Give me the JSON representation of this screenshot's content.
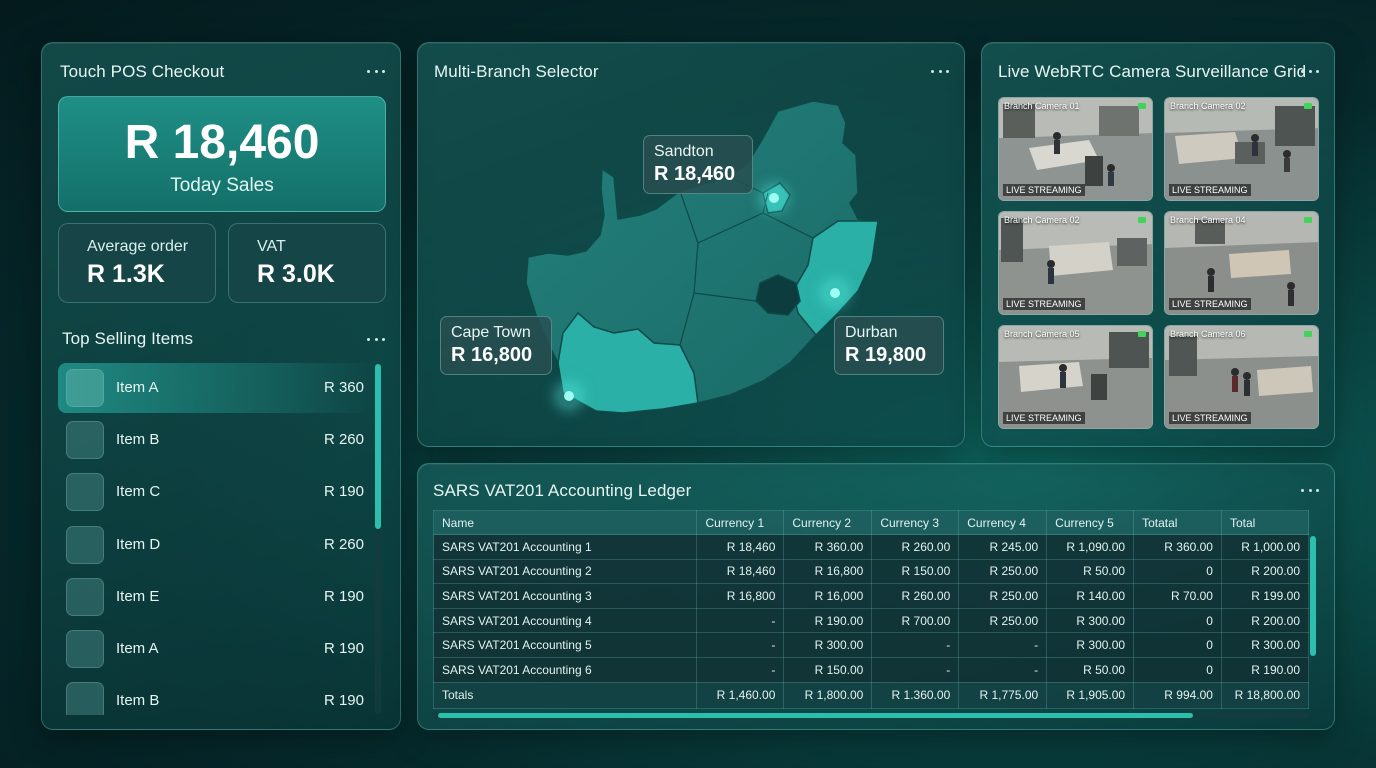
{
  "pos": {
    "title": "Touch POS Checkout",
    "today_sales_value": "R 18,460",
    "today_sales_label": "Today Sales",
    "avg_order_label": "Average order",
    "avg_order_value": "R 1.3K",
    "vat_label": "VAT",
    "vat_value": "R 3.0K",
    "top_selling_title": "Top Selling Items",
    "items": [
      {
        "name": "Item A",
        "price": "R 360"
      },
      {
        "name": "Item B",
        "price": "R 260"
      },
      {
        "name": "Item C",
        "price": "R 190"
      },
      {
        "name": "Item D",
        "price": "R 260"
      },
      {
        "name": "Item E",
        "price": "R 190"
      },
      {
        "name": "Item A",
        "price": "R 190"
      },
      {
        "name": "Item B",
        "price": "R 190"
      }
    ]
  },
  "map": {
    "title": "Multi-Branch Selector",
    "branches": [
      {
        "name": "Sandton",
        "value": "R 18,460"
      },
      {
        "name": "Cape Town",
        "value": "R 16,800"
      },
      {
        "name": "Durban",
        "value": "R 19,800"
      }
    ]
  },
  "cameras": {
    "title": "Live WebRTC Camera Surveillance Grid",
    "live_label": "LIVE STREAMING",
    "feeds": [
      {
        "name": "Branch Camera 01"
      },
      {
        "name": "Branch Camera 02"
      },
      {
        "name": "Branch Camera 02"
      },
      {
        "name": "Branch Camera 04"
      },
      {
        "name": "Branch Camera 05"
      },
      {
        "name": "Branch Camera 06"
      }
    ]
  },
  "ledger": {
    "title": "SARS VAT201 Accounting Ledger",
    "columns": [
      "Name",
      "Currency 1",
      "Currency 2",
      "Currency 3",
      "Currency 4",
      "Currency 5",
      "Totatal",
      "Total"
    ],
    "rows": [
      [
        "SARS VAT201 Accounting 1",
        "R 18,460",
        "R 360.00",
        "R 260.00",
        "R 245.00",
        "R 1,090.00",
        "R 360.00",
        "R 1,000.00"
      ],
      [
        "SARS VAT201 Accounting 2",
        "R 18,460",
        "R 16,800",
        "R 150.00",
        "R 250.00",
        "R 50.00",
        "0",
        "R 200.00"
      ],
      [
        "SARS VAT201 Accounting 3",
        "R 16,800",
        "R 16,000",
        "R 260.00",
        "R 250.00",
        "R 140.00",
        "R 70.00",
        "R 199.00"
      ],
      [
        "SARS VAT201 Accounting 4",
        "-",
        "R 190.00",
        "R 700.00",
        "R 250.00",
        "R 300.00",
        "0",
        "R 200.00"
      ],
      [
        "SARS VAT201 Accounting 5",
        "-",
        "R 300.00",
        "-",
        "-",
        "R 300.00",
        "0",
        "R 300.00"
      ],
      [
        "SARS VAT201 Accounting 6",
        "-",
        "R 150.00",
        "-",
        "-",
        "R 50.00",
        "0",
        "R 190.00"
      ]
    ],
    "totals": [
      "Totals",
      "R 1,460.00",
      "R 1,800.00",
      "R 1.360.00",
      "R 1,775.00",
      "R 1,905.00",
      "R 994.00",
      "R 18,800.00"
    ]
  }
}
